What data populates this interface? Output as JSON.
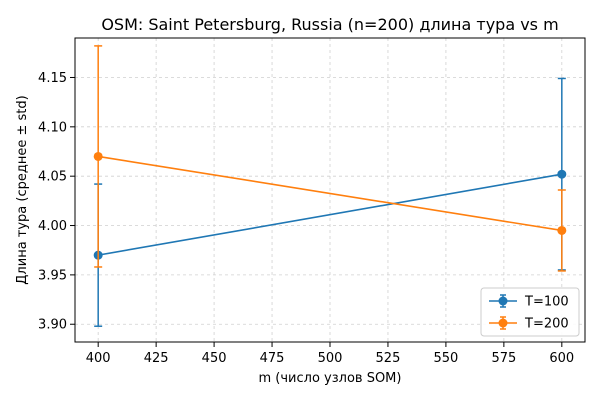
{
  "chart_data": {
    "type": "line",
    "title": "OSM: Saint Petersburg, Russia (n=200) длина тура vs m",
    "xlabel": "m (число узлов SOM)",
    "ylabel": "Длина тура (среднее ± std)",
    "xlim": [
      390,
      610
    ],
    "ylim": [
      3.882,
      4.19
    ],
    "xticks": [
      "400",
      "425",
      "450",
      "475",
      "500",
      "525",
      "550",
      "575",
      "600"
    ],
    "yticks": [
      "3.90",
      "3.95",
      "4.00",
      "4.05",
      "4.10",
      "4.15"
    ],
    "grid": true,
    "legend_position": "lower-right",
    "series": [
      {
        "name": "T=100",
        "color": "#1f77b4",
        "points": [
          {
            "x": 400,
            "y": 3.97,
            "std": 0.072
          },
          {
            "x": 600,
            "y": 4.052,
            "std": 0.097
          }
        ]
      },
      {
        "name": "T=200",
        "color": "#ff7f0e",
        "points": [
          {
            "x": 400,
            "y": 4.07,
            "std": 0.112
          },
          {
            "x": 600,
            "y": 3.995,
            "std": 0.041
          }
        ]
      }
    ]
  }
}
